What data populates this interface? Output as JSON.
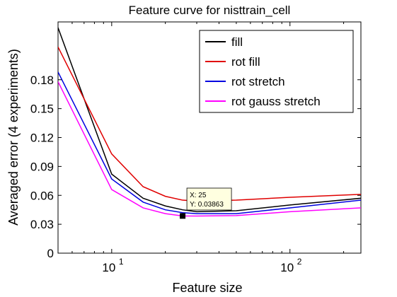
{
  "chart_data": {
    "type": "line",
    "title": "Feature curve for nisttrain_cell",
    "xlabel": "Feature size",
    "ylabel": "Averaged error (4 experiments)",
    "xscale": "log",
    "xlim": [
      5,
      250
    ],
    "ylim": [
      0,
      0.24
    ],
    "yticks": [
      0,
      0.03,
      0.06,
      0.09,
      0.12,
      0.15,
      0.18
    ],
    "ytick_labels": [
      "0",
      "0.03",
      "0.06",
      "0.09",
      "0.12",
      "0.15",
      "0.18"
    ],
    "xticks": [
      {
        "value": 10,
        "base": "10",
        "exp": "1"
      },
      {
        "value": 100,
        "base": "10",
        "exp": "2"
      }
    ],
    "grid": false,
    "legend_position": "top-right",
    "series": [
      {
        "name": "fill",
        "color": "#000000",
        "x": [
          5,
          10,
          15,
          20,
          25,
          30,
          50,
          100,
          250
        ],
        "y": [
          0.234,
          0.082,
          0.057,
          0.049,
          0.045,
          0.043,
          0.044,
          0.05,
          0.057
        ]
      },
      {
        "name": "rot fill",
        "color": "#e00000",
        "x": [
          5,
          10,
          15,
          20,
          25,
          30,
          50,
          100,
          250
        ],
        "y": [
          0.214,
          0.103,
          0.069,
          0.059,
          0.055,
          0.054,
          0.055,
          0.058,
          0.061
        ]
      },
      {
        "name": "rot stretch",
        "color": "#0000e0",
        "x": [
          5,
          10,
          15,
          20,
          25,
          30,
          50,
          100,
          250
        ],
        "y": [
          0.188,
          0.077,
          0.053,
          0.045,
          0.042,
          0.041,
          0.041,
          0.047,
          0.055
        ]
      },
      {
        "name": "rot gauss stretch",
        "color": "#ff00ff",
        "x": [
          5,
          10,
          15,
          20,
          25,
          30,
          50,
          100,
          250
        ],
        "y": [
          0.178,
          0.066,
          0.047,
          0.041,
          0.0386,
          0.0385,
          0.039,
          0.043,
          0.047
        ]
      }
    ],
    "datatip": {
      "x": 25,
      "y": 0.03863,
      "x_label": "X: 25",
      "y_label": "Y: 0.03863"
    }
  }
}
